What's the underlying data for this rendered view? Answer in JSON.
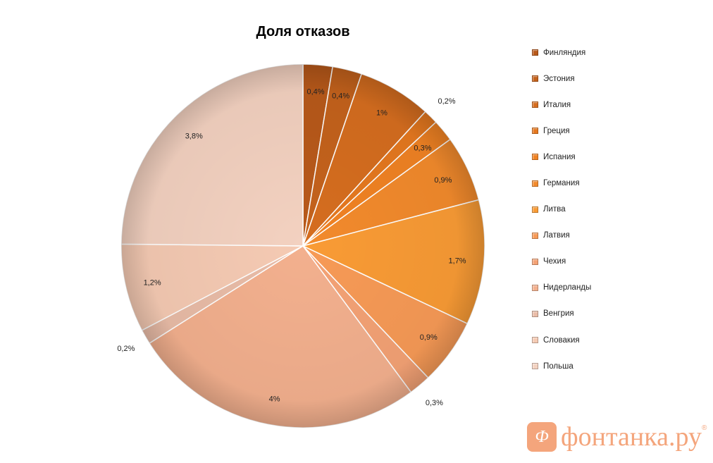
{
  "chart_data": {
    "type": "pie",
    "title": "Доля отказов",
    "legend_position": "right",
    "slices": [
      {
        "name": "Финляндия",
        "value": 0.4,
        "label": "0,4%",
        "color": "#b8591a"
      },
      {
        "name": "Эстония",
        "value": 0.4,
        "label": "0,4%",
        "color": "#c4621c"
      },
      {
        "name": "Италия",
        "value": 1.0,
        "label": "1%",
        "color": "#d56d1f"
      },
      {
        "name": "Греция",
        "value": 0.2,
        "label": "0,2%",
        "color": "#e5781f"
      },
      {
        "name": "Испания",
        "value": 0.3,
        "label": "0,3%",
        "color": "#f08223"
      },
      {
        "name": "Германия",
        "value": 0.9,
        "label": "0,9%",
        "color": "#f28a2c"
      },
      {
        "name": "Литва",
        "value": 1.7,
        "label": "1,7%",
        "color": "#f99b35"
      },
      {
        "name": "Латвия",
        "value": 0.9,
        "label": "0,9%",
        "color": "#f79a56"
      },
      {
        "name": "Чехия",
        "value": 0.3,
        "label": "0,3%",
        "color": "#f4a275"
      },
      {
        "name": "Нидерланды",
        "value": 4.0,
        "label": "4%",
        "color": "#f3b08e"
      },
      {
        "name": "Венгрия",
        "value": 0.2,
        "label": "0,2%",
        "color": "#e9bca7"
      },
      {
        "name": "Словакия",
        "value": 1.2,
        "label": "1,2%",
        "color": "#f5cab3"
      },
      {
        "name": "Польша",
        "value": 3.8,
        "label": "3,8%",
        "color": "#f3d1c0"
      }
    ]
  },
  "watermark": {
    "badge": "Ф",
    "text": "фонтанка.ру",
    "reg": "®"
  }
}
